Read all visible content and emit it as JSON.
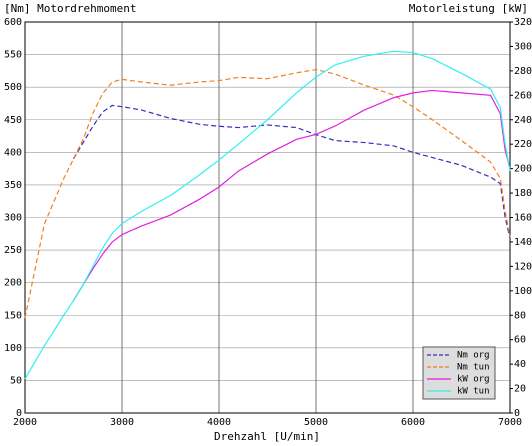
{
  "chart_data": {
    "type": "line",
    "y_label": "[Nm] Motordrehmoment",
    "y2_label": "Motorleistung [kW]",
    "x_label": "Drehzahl [U/min]",
    "x": [
      2000,
      2200,
      2400,
      2500,
      2600,
      2700,
      2800,
      2900,
      3000,
      3200,
      3500,
      3800,
      4000,
      4200,
      4500,
      4800,
      5000,
      5200,
      5500,
      5800,
      6000,
      6200,
      6500,
      6800,
      6900,
      6950,
      7000
    ],
    "series": [
      {
        "name": "Nm org",
        "color": "#3030c0",
        "style": "dashed",
        "values": [
          null,
          null,
          null,
          390,
          415,
          440,
          462,
          472,
          470,
          465,
          452,
          443,
          440,
          438,
          442,
          438,
          427,
          418,
          415,
          410,
          400,
          392,
          380,
          362,
          352,
          300,
          268
        ]
      },
      {
        "name": "Nm tun",
        "color": "#f08020",
        "style": "dashed",
        "values": [
          146,
          290,
          360,
          390,
          420,
          460,
          490,
          508,
          512,
          508,
          503,
          508,
          510,
          515,
          513,
          522,
          527,
          520,
          503,
          488,
          470,
          450,
          418,
          385,
          360,
          310,
          270
        ]
      },
      {
        "name": "kW org",
        "color": "#e020e0",
        "style": "solid",
        "axis": "y2",
        "values": [
          null,
          null,
          null,
          92,
          105,
          118,
          130,
          140,
          146,
          153,
          162,
          175,
          185,
          198,
          212,
          224,
          228,
          235,
          248,
          258,
          262,
          264,
          262,
          260,
          245,
          215,
          200
        ]
      },
      {
        "name": "kW tun",
        "color": "#30f0f0",
        "style": "solid",
        "axis": "y2",
        "values": [
          28,
          55,
          80,
          92,
          105,
          120,
          135,
          147,
          155,
          165,
          178,
          195,
          207,
          220,
          240,
          262,
          275,
          285,
          292,
          296,
          295,
          290,
          278,
          265,
          250,
          220,
          198
        ]
      }
    ],
    "xlim": [
      2000,
      7000
    ],
    "xticks": [
      2000,
      3000,
      4000,
      5000,
      6000,
      7000
    ],
    "ylim": [
      0,
      600
    ],
    "yticks": [
      0,
      50,
      100,
      150,
      200,
      250,
      300,
      350,
      400,
      450,
      500,
      550,
      600
    ],
    "y2lim": [
      0,
      320
    ],
    "y2ticks": [
      0,
      20,
      40,
      60,
      80,
      100,
      120,
      140,
      160,
      180,
      200,
      220,
      240,
      260,
      280,
      300,
      320
    ],
    "grid": true,
    "legend": "lower right"
  }
}
